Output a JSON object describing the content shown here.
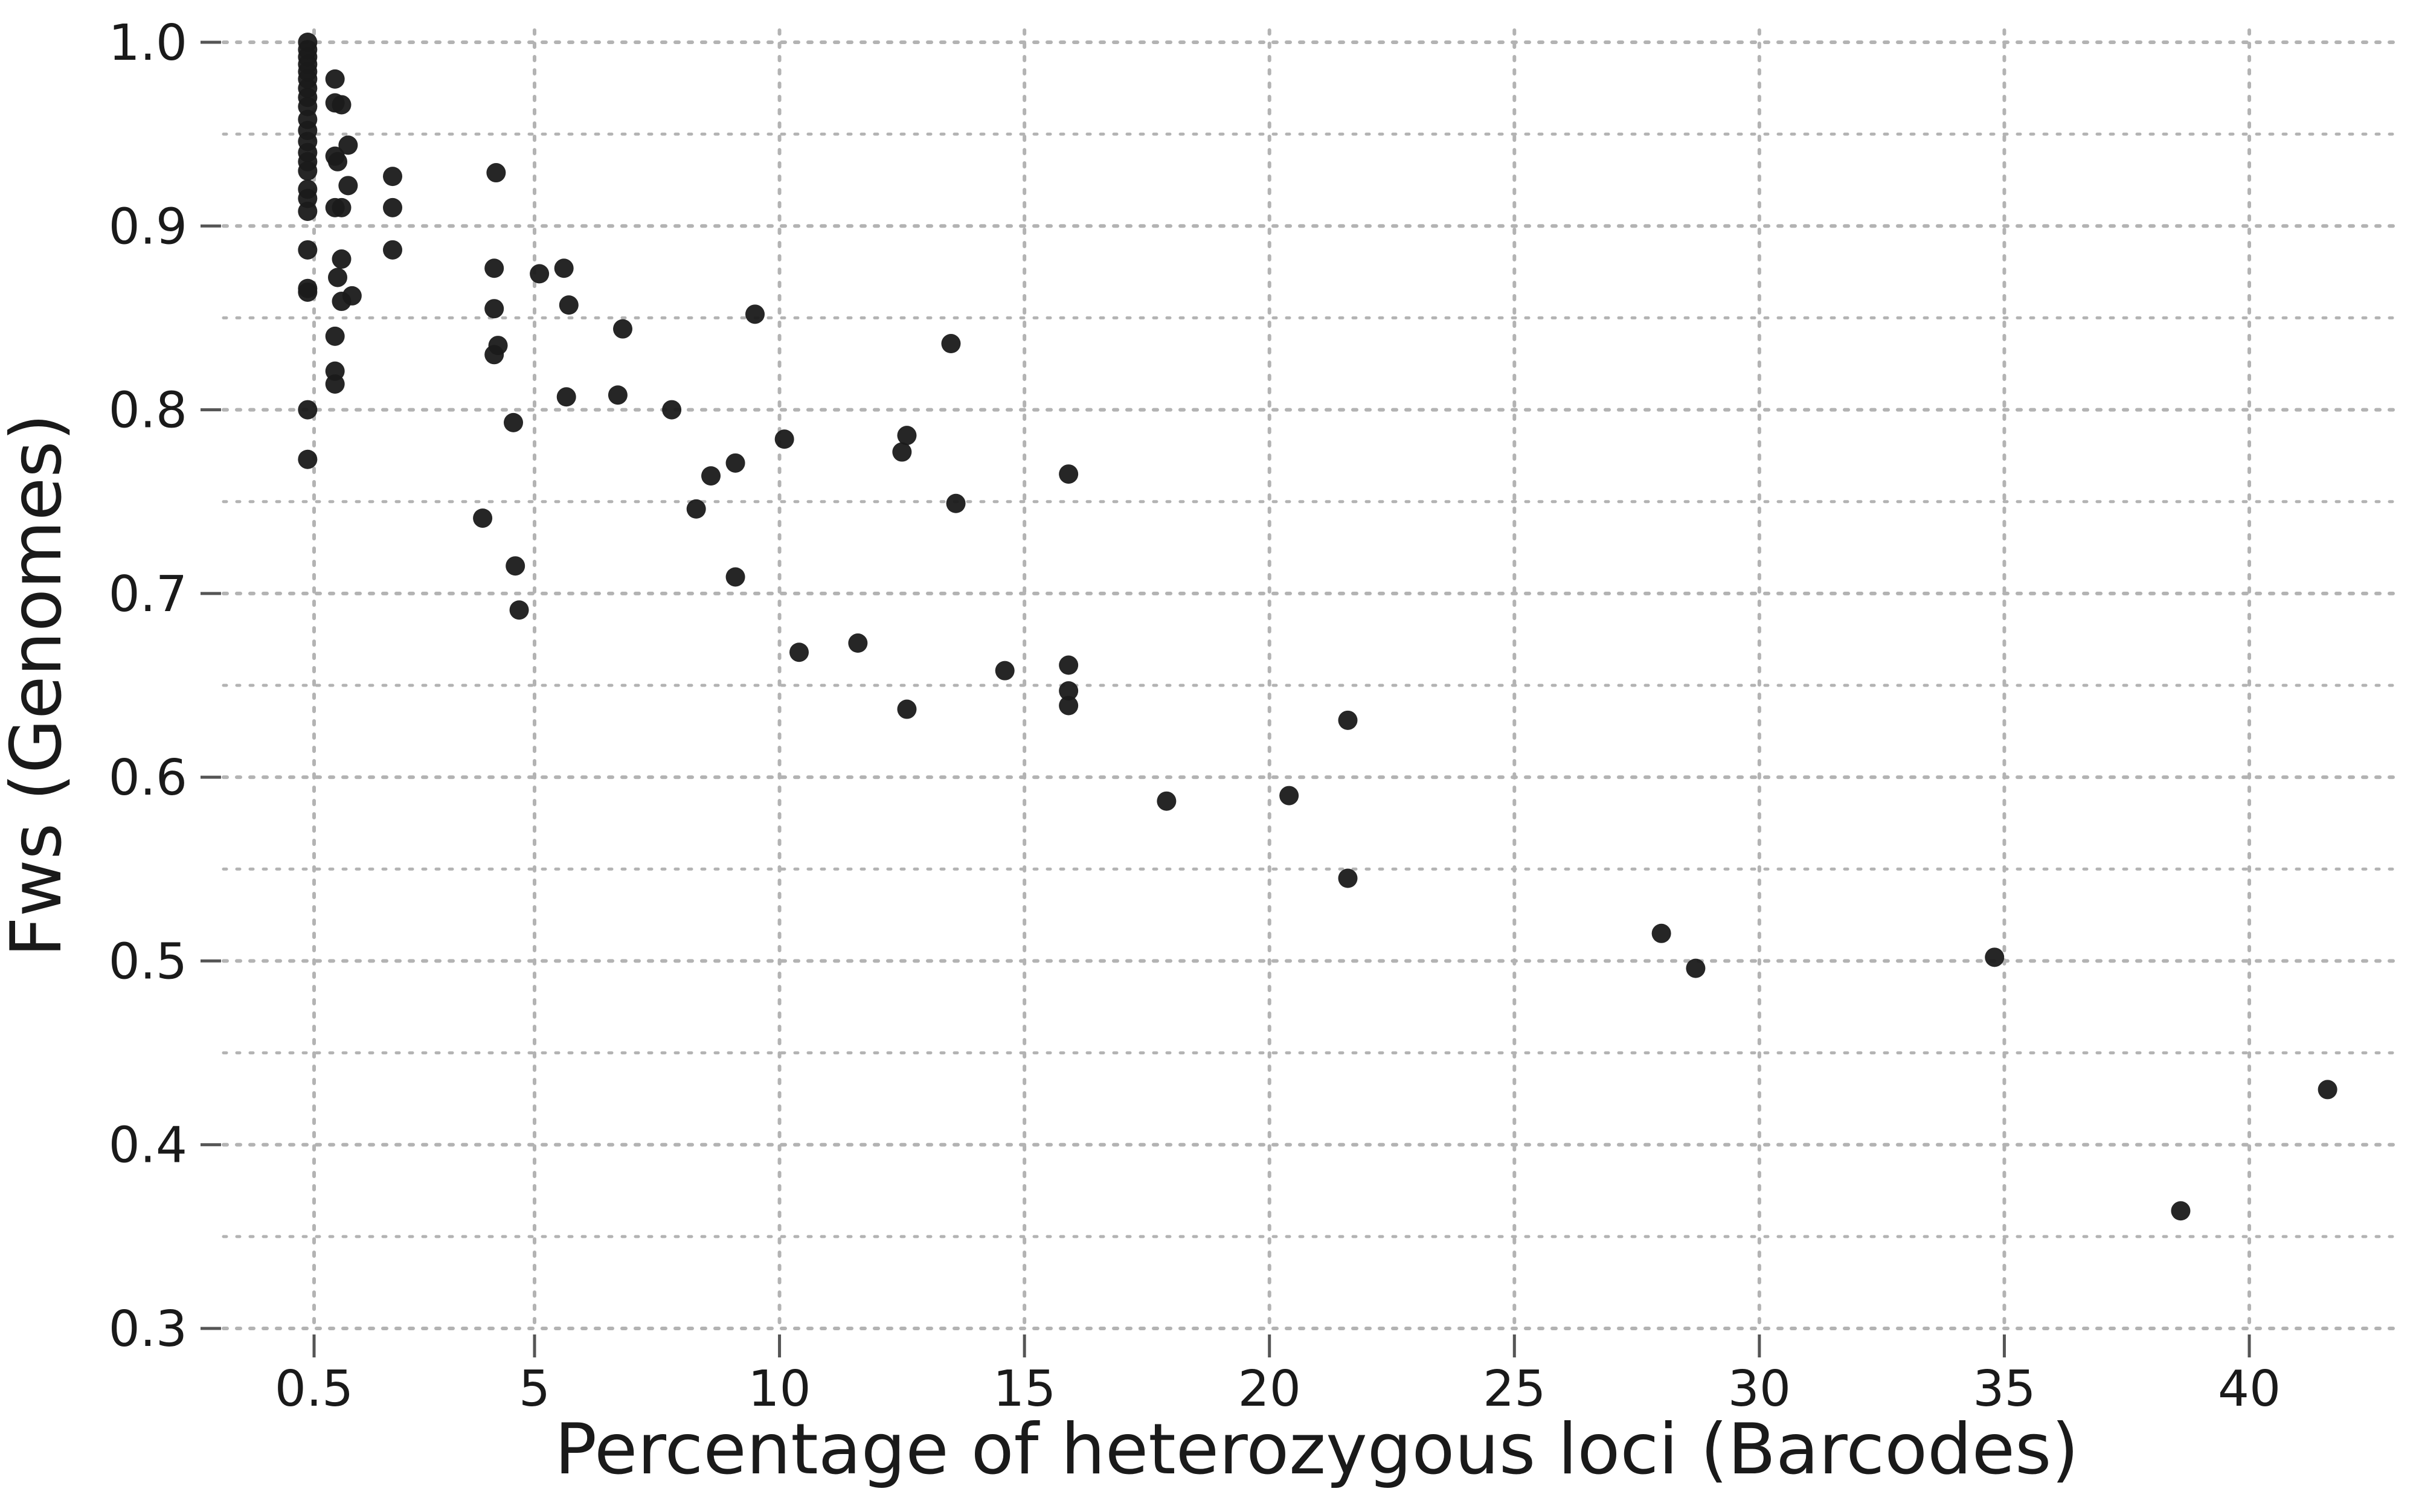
{
  "chart_data": {
    "type": "scatter",
    "title": "",
    "xlabel": "Percentage of heterozygous loci (Barcodes)",
    "ylabel": "Fws (Genomes)",
    "x_axis": {
      "scale": "piecewise",
      "ticks": [
        {
          "value": 0.5,
          "label": "0.5"
        },
        {
          "value": 5,
          "label": "5"
        },
        {
          "value": 10,
          "label": "10"
        },
        {
          "value": 15,
          "label": "15"
        },
        {
          "value": 20,
          "label": "20"
        },
        {
          "value": 25,
          "label": "25"
        },
        {
          "value": 30,
          "label": "30"
        },
        {
          "value": 35,
          "label": "35"
        },
        {
          "value": 40,
          "label": "40"
        }
      ],
      "minor_gridlines": [],
      "xlim": [
        -0.27,
        43
      ]
    },
    "y_axis": {
      "ticks": [
        {
          "value": 0.3,
          "label": "0.3"
        },
        {
          "value": 0.4,
          "label": "0.4"
        },
        {
          "value": 0.5,
          "label": "0.5"
        },
        {
          "value": 0.6,
          "label": "0.6"
        },
        {
          "value": 0.7,
          "label": "0.7"
        },
        {
          "value": 0.8,
          "label": "0.8"
        },
        {
          "value": 0.9,
          "label": "0.9"
        },
        {
          "value": 1.0,
          "label": "1.0"
        }
      ],
      "minor_gridlines": [
        0.35,
        0.45,
        0.55,
        0.65,
        0.75,
        0.85,
        0.95
      ],
      "ylim": [
        0.3,
        1.0
      ]
    },
    "grid": true,
    "grid_style": "dotted",
    "marker_color": "#1a1a1a",
    "grid_color": "#b3b3b3",
    "points": [
      {
        "x": 0.46,
        "y": 1.0
      },
      {
        "x": 0.46,
        "y": 0.996
      },
      {
        "x": 0.46,
        "y": 0.992
      },
      {
        "x": 0.46,
        "y": 0.988
      },
      {
        "x": 0.46,
        "y": 0.984
      },
      {
        "x": 0.46,
        "y": 0.98
      },
      {
        "x": 0.46,
        "y": 0.975
      },
      {
        "x": 0.46,
        "y": 0.97
      },
      {
        "x": 0.46,
        "y": 0.965
      },
      {
        "x": 0.46,
        "y": 0.958
      },
      {
        "x": 0.46,
        "y": 0.952
      },
      {
        "x": 0.46,
        "y": 0.946
      },
      {
        "x": 0.46,
        "y": 0.94
      },
      {
        "x": 0.46,
        "y": 0.935
      },
      {
        "x": 0.46,
        "y": 0.93
      },
      {
        "x": 0.46,
        "y": 0.92
      },
      {
        "x": 0.46,
        "y": 0.915
      },
      {
        "x": 0.46,
        "y": 0.908
      },
      {
        "x": 0.46,
        "y": 0.887
      },
      {
        "x": 0.46,
        "y": 0.866
      },
      {
        "x": 0.46,
        "y": 0.864
      },
      {
        "x": 0.46,
        "y": 0.8
      },
      {
        "x": 0.46,
        "y": 0.773
      },
      {
        "x": 0.66,
        "y": 0.98
      },
      {
        "x": 0.66,
        "y": 0.967
      },
      {
        "x": 0.66,
        "y": 0.938
      },
      {
        "x": 0.66,
        "y": 0.91
      },
      {
        "x": 0.66,
        "y": 0.84
      },
      {
        "x": 0.66,
        "y": 0.821
      },
      {
        "x": 0.66,
        "y": 0.814
      },
      {
        "x": 0.68,
        "y": 0.935
      },
      {
        "x": 0.68,
        "y": 0.872
      },
      {
        "x": 0.71,
        "y": 0.966
      },
      {
        "x": 0.71,
        "y": 0.91
      },
      {
        "x": 0.71,
        "y": 0.882
      },
      {
        "x": 0.71,
        "y": 0.859
      },
      {
        "x": 0.76,
        "y": 0.944
      },
      {
        "x": 0.76,
        "y": 0.922
      },
      {
        "x": 0.79,
        "y": 0.862
      },
      {
        "x": 1.1,
        "y": 0.927
      },
      {
        "x": 1.1,
        "y": 0.91
      },
      {
        "x": 1.1,
        "y": 0.887
      },
      {
        "x": 2.3,
        "y": 0.741
      },
      {
        "x": 2.9,
        "y": 0.877
      },
      {
        "x": 2.9,
        "y": 0.855
      },
      {
        "x": 2.9,
        "y": 0.83
      },
      {
        "x": 3.0,
        "y": 0.929
      },
      {
        "x": 3.1,
        "y": 0.835
      },
      {
        "x": 3.9,
        "y": 0.793
      },
      {
        "x": 4.0,
        "y": 0.715
      },
      {
        "x": 4.2,
        "y": 0.691
      },
      {
        "x": 5.1,
        "y": 0.874
      },
      {
        "x": 5.6,
        "y": 0.877
      },
      {
        "x": 5.65,
        "y": 0.807
      },
      {
        "x": 5.7,
        "y": 0.857
      },
      {
        "x": 6.7,
        "y": 0.808
      },
      {
        "x": 6.8,
        "y": 0.844
      },
      {
        "x": 7.8,
        "y": 0.8
      },
      {
        "x": 8.3,
        "y": 0.746
      },
      {
        "x": 8.6,
        "y": 0.764
      },
      {
        "x": 9.1,
        "y": 0.771
      },
      {
        "x": 9.1,
        "y": 0.709
      },
      {
        "x": 9.5,
        "y": 0.852
      },
      {
        "x": 10.1,
        "y": 0.784
      },
      {
        "x": 10.4,
        "y": 0.668
      },
      {
        "x": 11.6,
        "y": 0.673
      },
      {
        "x": 12.5,
        "y": 0.777
      },
      {
        "x": 12.6,
        "y": 0.786
      },
      {
        "x": 12.6,
        "y": 0.637
      },
      {
        "x": 13.5,
        "y": 0.836
      },
      {
        "x": 13.6,
        "y": 0.749
      },
      {
        "x": 14.6,
        "y": 0.658
      },
      {
        "x": 15.9,
        "y": 0.765
      },
      {
        "x": 15.9,
        "y": 0.661
      },
      {
        "x": 15.9,
        "y": 0.647
      },
      {
        "x": 15.9,
        "y": 0.639
      },
      {
        "x": 17.9,
        "y": 0.587
      },
      {
        "x": 20.4,
        "y": 0.59
      },
      {
        "x": 21.6,
        "y": 0.631
      },
      {
        "x": 21.6,
        "y": 0.545
      },
      {
        "x": 28.0,
        "y": 0.515
      },
      {
        "x": 28.7,
        "y": 0.496
      },
      {
        "x": 34.8,
        "y": 0.502
      },
      {
        "x": 38.6,
        "y": 0.364
      },
      {
        "x": 41.6,
        "y": 0.43
      }
    ]
  }
}
